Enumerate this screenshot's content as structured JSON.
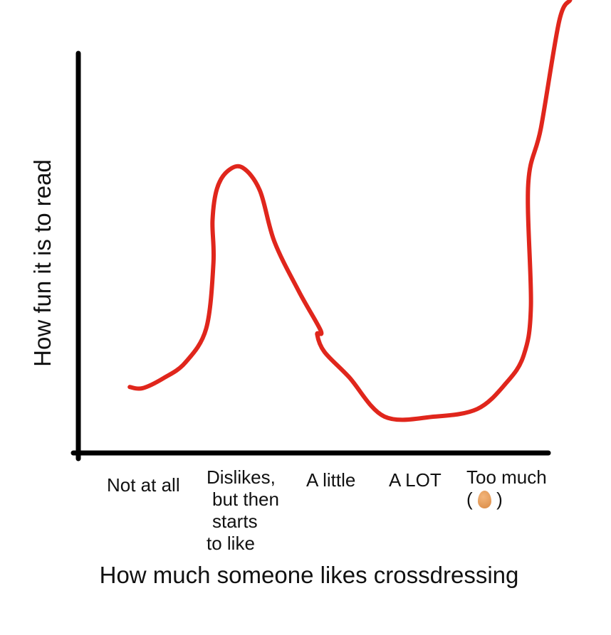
{
  "chart_data": {
    "type": "line",
    "title": "",
    "xlabel": "How much someone likes crossdressing",
    "ylabel": "How fun it is to read",
    "categories": [
      "Not at all",
      "Dislikes, but then starts to like",
      "A little",
      "A LOT",
      "Too much"
    ],
    "category_lines": [
      [
        "Not at all"
      ],
      [
        "Dislikes,",
        " but then",
        " starts",
        "to like"
      ],
      [
        "A little"
      ],
      [
        "A LOT"
      ],
      [
        "Too much",
        "("
      ]
    ],
    "too_much_suffix": ")",
    "too_much_icon": "egg-emoji",
    "ylim": [
      0,
      113
    ],
    "grid": false,
    "line_color": "#e0261c",
    "series": [
      {
        "x": [
          -0.21,
          -0.07,
          0.16,
          0.4,
          0.63,
          0.71,
          0.7,
          0.75,
          0.87,
          1.03,
          1.22,
          1.38,
          1.65,
          1.89,
          1.85,
          1.93,
          2.2,
          2.59,
          3.14,
          3.61,
          3.92,
          4.12,
          4.2,
          4.17,
          4.31,
          4.51,
          4.63
        ],
        "y": [
          16.5,
          16.2,
          18.7,
          22.6,
          31.1,
          47.5,
          58.2,
          66.2,
          70.6,
          71.4,
          65.7,
          52.9,
          40.4,
          30.6,
          29.7,
          25.3,
          19.0,
          9.1,
          9.1,
          11.0,
          17.3,
          24.4,
          36.8,
          67.1,
          81.3,
          108,
          113.3
        ]
      }
    ]
  }
}
